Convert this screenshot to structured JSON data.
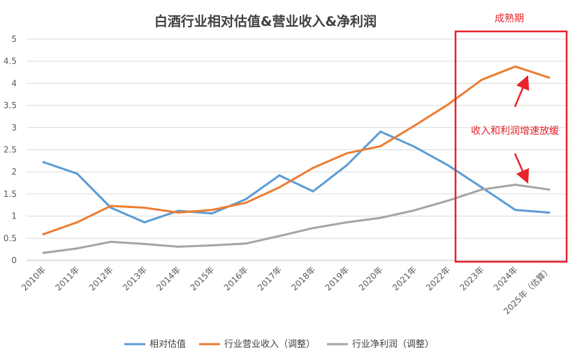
{
  "chart_data": {
    "type": "line",
    "title": "白酒行业相对估值&营业收入&净利润",
    "categories": [
      "2010年",
      "2011年",
      "2012年",
      "2013年",
      "2014年",
      "2015年",
      "2016年",
      "2017年",
      "2018年",
      "2019年",
      "2020年",
      "2021年",
      "2022年",
      "2023年",
      "2024年",
      "2025年（估算）"
    ],
    "ylim": [
      0,
      5
    ],
    "yticks": [
      "0",
      "0.5",
      "1",
      "1.5",
      "2",
      "2.5",
      "3",
      "3.5",
      "4",
      "4.5",
      "5"
    ],
    "grid": true,
    "legend_position": "bottom",
    "series": [
      {
        "name": "相对估值",
        "color": "#5b9bd5",
        "values": [
          2.22,
          1.96,
          1.19,
          0.86,
          1.12,
          1.06,
          1.38,
          1.92,
          1.56,
          2.15,
          2.91,
          2.57,
          2.15,
          1.65,
          1.14,
          1.08
        ]
      },
      {
        "name": "行业营业收入（调整）",
        "color": "#ed7d31",
        "values": [
          0.59,
          0.86,
          1.23,
          1.19,
          1.08,
          1.14,
          1.3,
          1.65,
          2.09,
          2.42,
          2.58,
          3.04,
          3.52,
          4.08,
          4.38,
          4.13
        ]
      },
      {
        "name": "行业净利润（调整）",
        "color": "#a5a5a5",
        "values": [
          0.17,
          0.27,
          0.42,
          0.37,
          0.31,
          0.34,
          0.38,
          0.55,
          0.73,
          0.86,
          0.96,
          1.13,
          1.35,
          1.6,
          1.71,
          1.6
        ]
      }
    ],
    "annotations": {
      "box_label": "成熟期",
      "arrow_text": "收入和利润增速放缓",
      "color": "#e8222a"
    }
  }
}
